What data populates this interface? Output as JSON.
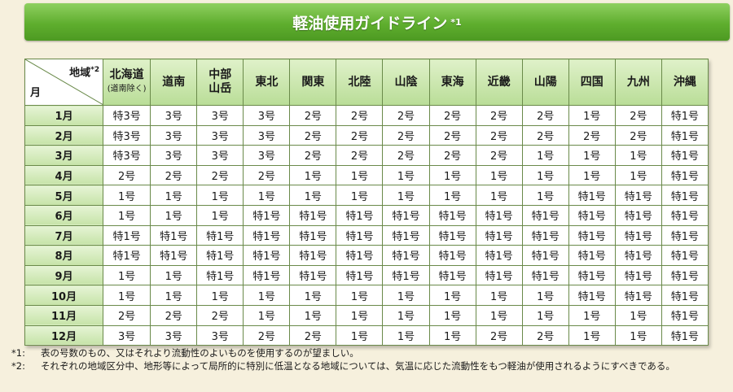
{
  "title": "軽油使用ガイドライン",
  "title_note_mark": "*1",
  "corner": {
    "region_label": "地域",
    "region_note_mark": "*2",
    "month_label": "月"
  },
  "columns": [
    {
      "name": "北海道",
      "sub": "(道南除く)"
    },
    {
      "name": "道南",
      "sub": ""
    },
    {
      "name": "中部\n山岳",
      "sub": ""
    },
    {
      "name": "東北",
      "sub": ""
    },
    {
      "name": "関東",
      "sub": ""
    },
    {
      "name": "北陸",
      "sub": ""
    },
    {
      "name": "山陰",
      "sub": ""
    },
    {
      "name": "東海",
      "sub": ""
    },
    {
      "name": "近畿",
      "sub": ""
    },
    {
      "name": "山陽",
      "sub": ""
    },
    {
      "name": "四国",
      "sub": ""
    },
    {
      "name": "九州",
      "sub": ""
    },
    {
      "name": "沖縄",
      "sub": ""
    }
  ],
  "rows": [
    {
      "month": "1月",
      "cells": [
        "特3号",
        "3号",
        "3号",
        "3号",
        "2号",
        "2号",
        "2号",
        "2号",
        "2号",
        "2号",
        "1号",
        "2号",
        "特1号"
      ]
    },
    {
      "month": "2月",
      "cells": [
        "特3号",
        "3号",
        "3号",
        "3号",
        "2号",
        "2号",
        "2号",
        "2号",
        "2号",
        "2号",
        "2号",
        "2号",
        "特1号"
      ]
    },
    {
      "month": "3月",
      "cells": [
        "特3号",
        "3号",
        "3号",
        "3号",
        "2号",
        "2号",
        "2号",
        "2号",
        "2号",
        "1号",
        "1号",
        "1号",
        "特1号"
      ]
    },
    {
      "month": "4月",
      "cells": [
        "2号",
        "2号",
        "2号",
        "2号",
        "1号",
        "1号",
        "1号",
        "1号",
        "1号",
        "1号",
        "1号",
        "1号",
        "特1号"
      ]
    },
    {
      "month": "5月",
      "cells": [
        "1号",
        "1号",
        "1号",
        "1号",
        "1号",
        "1号",
        "1号",
        "1号",
        "1号",
        "1号",
        "特1号",
        "特1号",
        "特1号"
      ]
    },
    {
      "month": "6月",
      "cells": [
        "1号",
        "1号",
        "1号",
        "特1号",
        "特1号",
        "特1号",
        "特1号",
        "特1号",
        "特1号",
        "特1号",
        "特1号",
        "特1号",
        "特1号"
      ]
    },
    {
      "month": "7月",
      "cells": [
        "特1号",
        "特1号",
        "特1号",
        "特1号",
        "特1号",
        "特1号",
        "特1号",
        "特1号",
        "特1号",
        "特1号",
        "特1号",
        "特1号",
        "特1号"
      ]
    },
    {
      "month": "8月",
      "cells": [
        "特1号",
        "特1号",
        "特1号",
        "特1号",
        "特1号",
        "特1号",
        "特1号",
        "特1号",
        "特1号",
        "特1号",
        "特1号",
        "特1号",
        "特1号"
      ]
    },
    {
      "month": "9月",
      "cells": [
        "1号",
        "1号",
        "特1号",
        "特1号",
        "特1号",
        "特1号",
        "特1号",
        "特1号",
        "特1号",
        "特1号",
        "特1号",
        "特1号",
        "特1号"
      ]
    },
    {
      "month": "10月",
      "cells": [
        "1号",
        "1号",
        "1号",
        "1号",
        "1号",
        "1号",
        "1号",
        "1号",
        "1号",
        "1号",
        "特1号",
        "特1号",
        "特1号"
      ]
    },
    {
      "month": "11月",
      "cells": [
        "2号",
        "2号",
        "2号",
        "1号",
        "1号",
        "1号",
        "1号",
        "1号",
        "1号",
        "1号",
        "1号",
        "1号",
        "特1号"
      ]
    },
    {
      "month": "12月",
      "cells": [
        "3号",
        "3号",
        "3号",
        "2号",
        "2号",
        "1号",
        "1号",
        "1号",
        "2号",
        "2号",
        "1号",
        "1号",
        "特1号"
      ]
    }
  ],
  "notes": [
    {
      "mark": "*1:",
      "text": "表の号数のもの、又はそれより流動性のよいものを使用するのが望ましい。"
    },
    {
      "mark": "*2:",
      "text": "それぞれの地域区分中、地形等によって局所的に特別に低温となる地域については、気温に応じた流動性をもつ軽油が使用されるようにすべきである。"
    }
  ],
  "colors": {
    "banner": "#5fae2e",
    "header": "#c6e3a8",
    "background": "#f6f0dd"
  }
}
